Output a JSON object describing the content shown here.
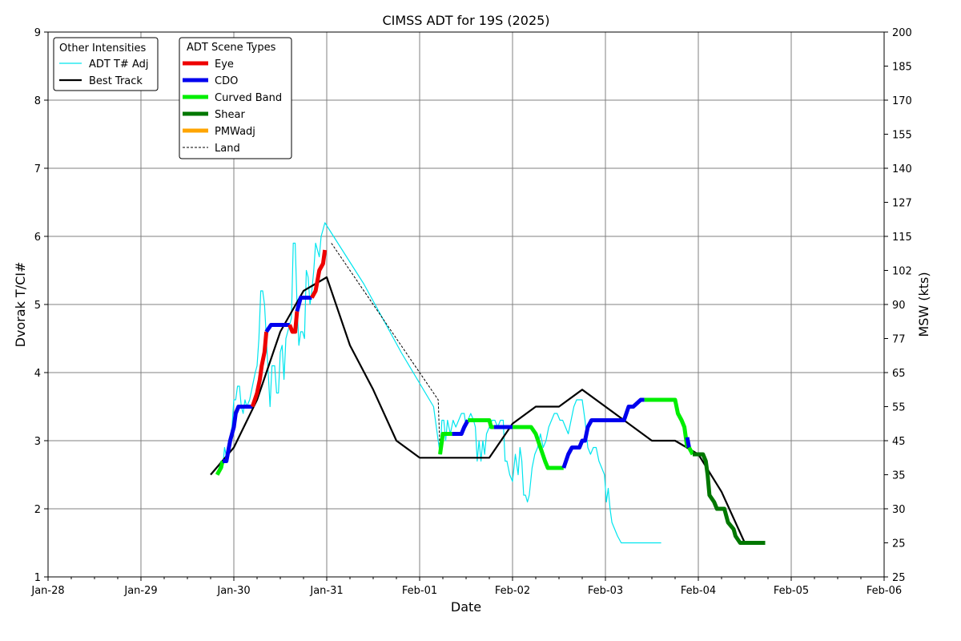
{
  "chart_data": {
    "type": "line",
    "title": "CIMSS ADT for 19S (2025)",
    "xlabel": "Date",
    "ylabel": "Dvorak T/CI#",
    "ylabel_right": "MSW (kts)",
    "x_ticks": [
      "Jan-28",
      "Jan-29",
      "Jan-30",
      "Jan-31",
      "Feb-01",
      "Feb-02",
      "Feb-03",
      "Feb-04",
      "Feb-05",
      "Feb-06"
    ],
    "xlim": [
      0,
      9
    ],
    "ylim": [
      1,
      9
    ],
    "y_ticks": [
      1,
      2,
      3,
      4,
      5,
      6,
      7,
      8,
      9
    ],
    "right_ticks": [
      {
        "t": 1,
        "label": "25"
      },
      {
        "t": 1.5,
        "label": "25"
      },
      {
        "t": 2,
        "label": "30"
      },
      {
        "t": 2.5,
        "label": "35"
      },
      {
        "t": 3,
        "label": "45"
      },
      {
        "t": 3.5,
        "label": "55"
      },
      {
        "t": 4,
        "label": "65"
      },
      {
        "t": 4.5,
        "label": "77"
      },
      {
        "t": 5,
        "label": "90"
      },
      {
        "t": 5.5,
        "label": "102"
      },
      {
        "t": 6,
        "label": "115"
      },
      {
        "t": 6.5,
        "label": "127"
      },
      {
        "t": 7,
        "label": "140"
      },
      {
        "t": 7.5,
        "label": "155"
      },
      {
        "t": 8,
        "label": "170"
      },
      {
        "t": 8.5,
        "label": "185"
      },
      {
        "t": 9,
        "label": "200"
      }
    ],
    "grid": true,
    "legend_other": {
      "title": "Other Intensities",
      "entries": [
        {
          "name": "ADT T# Adj",
          "color": "#00e5ee"
        },
        {
          "name": "Best Track",
          "color": "#000000"
        }
      ]
    },
    "legend_scene": {
      "title": "ADT Scene Types",
      "entries": [
        {
          "name": "Eye",
          "color": "#ee0000"
        },
        {
          "name": "CDO",
          "color": "#0000ee"
        },
        {
          "name": "Curved Band",
          "color": "#00ee00"
        },
        {
          "name": "Shear",
          "color": "#007700"
        },
        {
          "name": "PMWadj",
          "color": "#ffa500"
        },
        {
          "name": "Land",
          "color": "#000000"
        }
      ]
    },
    "best_track": [
      [
        1.75,
        2.5
      ],
      [
        2.0,
        2.9
      ],
      [
        2.25,
        3.6
      ],
      [
        2.5,
        4.6
      ],
      [
        2.75,
        5.2
      ],
      [
        3.0,
        5.4
      ],
      [
        3.25,
        4.4
      ],
      [
        3.5,
        3.75
      ],
      [
        3.75,
        3.0
      ],
      [
        4.0,
        2.75
      ],
      [
        4.5,
        2.75
      ],
      [
        4.75,
        2.75
      ],
      [
        5.0,
        3.25
      ],
      [
        5.25,
        3.5
      ],
      [
        5.5,
        3.5
      ],
      [
        5.75,
        3.75
      ],
      [
        6.0,
        3.5
      ],
      [
        6.25,
        3.25
      ],
      [
        6.5,
        3.0
      ],
      [
        6.75,
        3.0
      ],
      [
        7.0,
        2.8
      ],
      [
        7.25,
        2.25
      ],
      [
        7.5,
        1.5
      ]
    ],
    "land": [
      [
        3.05,
        5.9
      ],
      [
        3.6,
        4.8
      ],
      [
        4.2,
        3.6
      ],
      [
        4.22,
        2.8
      ]
    ],
    "adt_raw": [
      [
        1.82,
        2.5
      ],
      [
        1.86,
        2.7
      ],
      [
        1.88,
        2.6
      ],
      [
        1.9,
        2.9
      ],
      [
        1.93,
        2.7
      ],
      [
        1.95,
        3.0
      ],
      [
        1.98,
        3.2
      ],
      [
        2.0,
        3.6
      ],
      [
        2.02,
        3.6
      ],
      [
        2.04,
        3.8
      ],
      [
        2.06,
        3.8
      ],
      [
        2.08,
        3.5
      ],
      [
        2.1,
        3.4
      ],
      [
        2.12,
        3.6
      ],
      [
        2.14,
        3.5
      ],
      [
        2.17,
        3.6
      ],
      [
        2.2,
        3.8
      ],
      [
        2.23,
        4.0
      ],
      [
        2.25,
        4.1
      ],
      [
        2.27,
        4.5
      ],
      [
        2.29,
        5.2
      ],
      [
        2.31,
        5.2
      ],
      [
        2.33,
        5.0
      ],
      [
        2.35,
        4.5
      ],
      [
        2.37,
        4.0
      ],
      [
        2.39,
        3.5
      ],
      [
        2.41,
        4.1
      ],
      [
        2.44,
        4.1
      ],
      [
        2.46,
        3.7
      ],
      [
        2.48,
        3.7
      ],
      [
        2.5,
        4.3
      ],
      [
        2.52,
        4.4
      ],
      [
        2.54,
        3.9
      ],
      [
        2.56,
        4.5
      ],
      [
        2.58,
        4.6
      ],
      [
        2.6,
        4.7
      ],
      [
        2.62,
        4.8
      ],
      [
        2.64,
        5.9
      ],
      [
        2.66,
        5.9
      ],
      [
        2.68,
        5.0
      ],
      [
        2.7,
        4.4
      ],
      [
        2.72,
        4.6
      ],
      [
        2.74,
        4.6
      ],
      [
        2.76,
        4.5
      ],
      [
        2.78,
        5.5
      ],
      [
        2.8,
        5.4
      ],
      [
        2.82,
        5.0
      ],
      [
        2.84,
        5.2
      ],
      [
        2.86,
        5.5
      ],
      [
        2.88,
        5.9
      ],
      [
        2.9,
        5.8
      ],
      [
        2.92,
        5.7
      ],
      [
        2.94,
        6.0
      ],
      [
        2.96,
        6.1
      ],
      [
        2.98,
        6.2
      ],
      [
        3.4,
        5.3
      ],
      [
        3.8,
        4.3
      ],
      [
        4.15,
        3.5
      ],
      [
        4.22,
        2.8
      ],
      [
        4.24,
        3.3
      ],
      [
        4.26,
        3.3
      ],
      [
        4.28,
        3.0
      ],
      [
        4.3,
        3.3
      ],
      [
        4.33,
        3.1
      ],
      [
        4.36,
        3.3
      ],
      [
        4.39,
        3.2
      ],
      [
        4.42,
        3.3
      ],
      [
        4.45,
        3.4
      ],
      [
        4.48,
        3.4
      ],
      [
        4.5,
        3.2
      ],
      [
        4.52,
        3.3
      ],
      [
        4.55,
        3.4
      ],
      [
        4.58,
        3.3
      ],
      [
        4.6,
        3.2
      ],
      [
        4.62,
        2.7
      ],
      [
        4.64,
        3.0
      ],
      [
        4.66,
        2.7
      ],
      [
        4.68,
        3.0
      ],
      [
        4.7,
        2.8
      ],
      [
        4.72,
        3.1
      ],
      [
        4.75,
        3.2
      ],
      [
        4.78,
        3.3
      ],
      [
        4.81,
        3.3
      ],
      [
        4.84,
        3.2
      ],
      [
        4.87,
        3.3
      ],
      [
        4.9,
        3.3
      ],
      [
        4.92,
        2.7
      ],
      [
        4.94,
        2.7
      ],
      [
        4.97,
        2.5
      ],
      [
        5.0,
        2.4
      ],
      [
        5.03,
        2.8
      ],
      [
        5.06,
        2.5
      ],
      [
        5.08,
        2.9
      ],
      [
        5.1,
        2.7
      ],
      [
        5.12,
        2.2
      ],
      [
        5.14,
        2.2
      ],
      [
        5.16,
        2.1
      ],
      [
        5.18,
        2.2
      ],
      [
        5.21,
        2.6
      ],
      [
        5.24,
        2.8
      ],
      [
        5.27,
        2.9
      ],
      [
        5.3,
        3.1
      ],
      [
        5.33,
        2.9
      ],
      [
        5.36,
        3.0
      ],
      [
        5.39,
        3.2
      ],
      [
        5.42,
        3.3
      ],
      [
        5.45,
        3.4
      ],
      [
        5.48,
        3.4
      ],
      [
        5.51,
        3.3
      ],
      [
        5.54,
        3.3
      ],
      [
        5.57,
        3.2
      ],
      [
        5.6,
        3.1
      ],
      [
        5.63,
        3.3
      ],
      [
        5.66,
        3.5
      ],
      [
        5.69,
        3.6
      ],
      [
        5.72,
        3.6
      ],
      [
        5.75,
        3.6
      ],
      [
        5.78,
        3.3
      ],
      [
        5.81,
        2.9
      ],
      [
        5.84,
        2.8
      ],
      [
        5.87,
        2.9
      ],
      [
        5.9,
        2.9
      ],
      [
        5.93,
        2.7
      ],
      [
        5.96,
        2.6
      ],
      [
        5.99,
        2.5
      ],
      [
        6.01,
        2.1
      ],
      [
        6.03,
        2.3
      ],
      [
        6.05,
        2.0
      ],
      [
        6.07,
        1.8
      ],
      [
        6.1,
        1.7
      ],
      [
        6.13,
        1.6
      ],
      [
        6.17,
        1.5
      ],
      [
        6.5,
        1.5
      ],
      [
        6.6,
        1.5
      ]
    ],
    "scene_segments": [
      {
        "type": "Curved Band",
        "points": [
          [
            1.82,
            2.5
          ],
          [
            1.86,
            2.6
          ],
          [
            1.88,
            2.7
          ]
        ]
      },
      {
        "type": "CDO",
        "points": [
          [
            1.88,
            2.7
          ],
          [
            1.92,
            2.7
          ],
          [
            1.96,
            3.0
          ],
          [
            2.0,
            3.2
          ],
          [
            2.02,
            3.4
          ],
          [
            2.05,
            3.5
          ],
          [
            2.1,
            3.5
          ],
          [
            2.15,
            3.5
          ],
          [
            2.2,
            3.5
          ]
        ]
      },
      {
        "type": "Eye",
        "points": [
          [
            2.2,
            3.5
          ],
          [
            2.25,
            3.7
          ],
          [
            2.28,
            3.9
          ],
          [
            2.3,
            4.1
          ],
          [
            2.33,
            4.3
          ],
          [
            2.35,
            4.6
          ]
        ]
      },
      {
        "type": "CDO",
        "points": [
          [
            2.35,
            4.6
          ],
          [
            2.4,
            4.7
          ],
          [
            2.5,
            4.7
          ],
          [
            2.6,
            4.7
          ]
        ]
      },
      {
        "type": "Eye",
        "points": [
          [
            2.6,
            4.7
          ],
          [
            2.63,
            4.6
          ],
          [
            2.66,
            4.6
          ],
          [
            2.68,
            4.9
          ]
        ]
      },
      {
        "type": "CDO",
        "points": [
          [
            2.68,
            4.9
          ],
          [
            2.72,
            5.1
          ],
          [
            2.8,
            5.1
          ],
          [
            2.84,
            5.1
          ]
        ]
      },
      {
        "type": "Eye",
        "points": [
          [
            2.84,
            5.1
          ],
          [
            2.88,
            5.2
          ],
          [
            2.92,
            5.5
          ],
          [
            2.96,
            5.6
          ],
          [
            2.98,
            5.8
          ]
        ]
      },
      {
        "type": "Curved Band",
        "points": [
          [
            4.22,
            2.8
          ],
          [
            4.25,
            3.1
          ],
          [
            4.3,
            3.1
          ],
          [
            4.35,
            3.1
          ]
        ]
      },
      {
        "type": "CDO",
        "points": [
          [
            4.35,
            3.1
          ],
          [
            4.45,
            3.1
          ],
          [
            4.48,
            3.2
          ],
          [
            4.52,
            3.3
          ]
        ]
      },
      {
        "type": "Curved Band",
        "points": [
          [
            4.52,
            3.3
          ],
          [
            4.65,
            3.3
          ],
          [
            4.75,
            3.3
          ],
          [
            4.77,
            3.2
          ],
          [
            4.8,
            3.2
          ]
        ]
      },
      {
        "type": "CDO",
        "points": [
          [
            4.8,
            3.2
          ],
          [
            4.9,
            3.2
          ],
          [
            5.0,
            3.2
          ]
        ]
      },
      {
        "type": "Curved Band",
        "points": [
          [
            5.0,
            3.2
          ],
          [
            5.2,
            3.2
          ],
          [
            5.25,
            3.1
          ],
          [
            5.3,
            2.9
          ],
          [
            5.35,
            2.7
          ],
          [
            5.38,
            2.6
          ],
          [
            5.5,
            2.6
          ],
          [
            5.55,
            2.6
          ]
        ]
      },
      {
        "type": "CDO",
        "points": [
          [
            5.55,
            2.6
          ],
          [
            5.6,
            2.8
          ],
          [
            5.64,
            2.9
          ],
          [
            5.72,
            2.9
          ],
          [
            5.75,
            3.0
          ],
          [
            5.78,
            3.0
          ],
          [
            5.81,
            3.2
          ],
          [
            5.85,
            3.3
          ],
          [
            6.0,
            3.3
          ],
          [
            6.15,
            3.3
          ],
          [
            6.2,
            3.3
          ],
          [
            6.25,
            3.5
          ],
          [
            6.3,
            3.5
          ],
          [
            6.38,
            3.6
          ],
          [
            6.42,
            3.6
          ]
        ]
      },
      {
        "type": "Curved Band",
        "points": [
          [
            6.42,
            3.6
          ],
          [
            6.5,
            3.6
          ],
          [
            6.6,
            3.6
          ],
          [
            6.75,
            3.6
          ],
          [
            6.78,
            3.4
          ],
          [
            6.82,
            3.3
          ],
          [
            6.85,
            3.2
          ],
          [
            6.88,
            2.9
          ]
        ]
      },
      {
        "type": "CDO",
        "points": [
          [
            6.88,
            3.05
          ],
          [
            6.9,
            2.9
          ]
        ]
      },
      {
        "type": "Curved Band",
        "points": [
          [
            6.9,
            2.9
          ],
          [
            6.94,
            2.8
          ]
        ]
      },
      {
        "type": "Shear",
        "points": [
          [
            6.94,
            2.8
          ],
          [
            7.05,
            2.8
          ],
          [
            7.08,
            2.7
          ],
          [
            7.1,
            2.5
          ],
          [
            7.12,
            2.2
          ],
          [
            7.17,
            2.1
          ],
          [
            7.2,
            2.0
          ],
          [
            7.28,
            2.0
          ],
          [
            7.32,
            1.8
          ],
          [
            7.38,
            1.7
          ],
          [
            7.4,
            1.6
          ],
          [
            7.45,
            1.5
          ],
          [
            7.55,
            1.5
          ],
          [
            7.65,
            1.5
          ],
          [
            7.72,
            1.5
          ]
        ]
      }
    ]
  }
}
